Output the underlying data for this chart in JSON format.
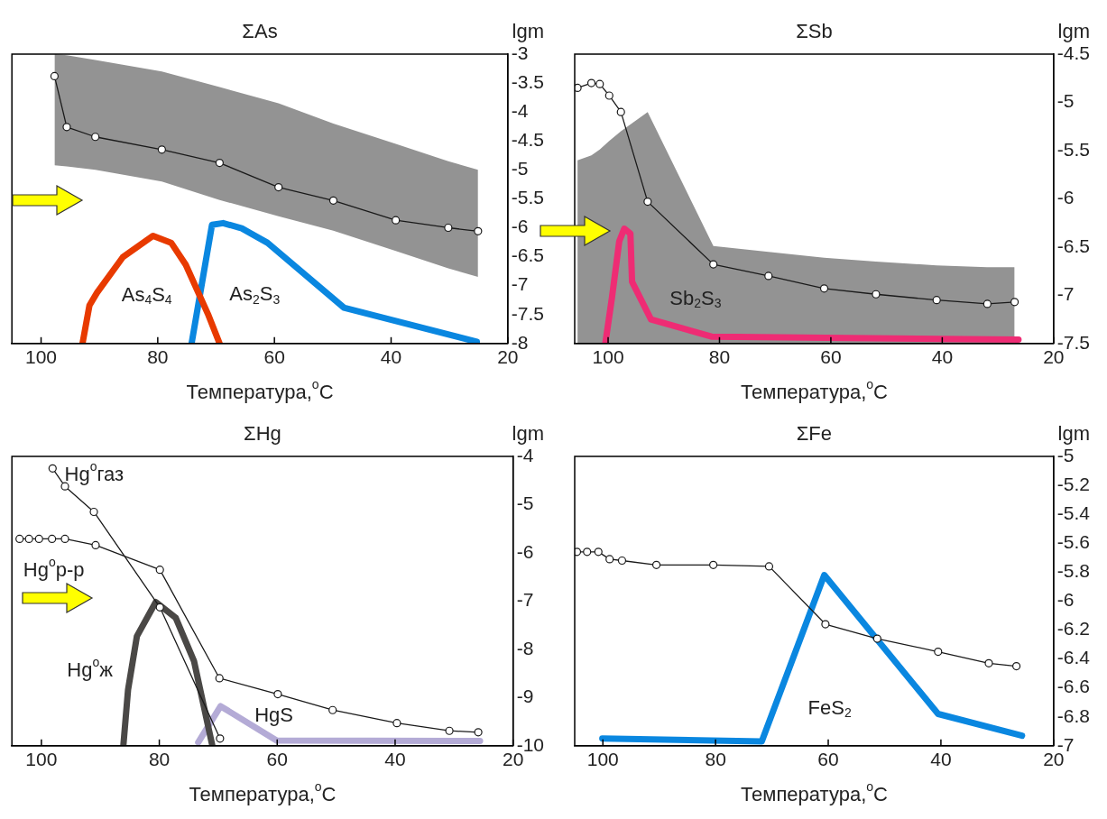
{
  "chart_data": [
    {
      "type": "line",
      "title": "ΣAs",
      "xlabel": "Температура,$^{o}$C",
      "ylabel": "lgm",
      "xlim": [
        105,
        20
      ],
      "xticks": [
        100,
        80,
        60,
        40,
        20
      ],
      "ylim": [
        -8,
        -3
      ],
      "yticks": [
        -3,
        -3.5,
        -4,
        -4.5,
        -5,
        -5.5,
        -6,
        -6.5,
        -7,
        -7.5,
        -8
      ],
      "grid": false,
      "series": [
        {
          "color": "#1a1a1a",
          "marker": "circle",
          "x": [
            97.7,
            95.6,
            90.7,
            79.3,
            69.4,
            59.3,
            49.9,
            39.2,
            30.2,
            25.1
          ],
          "values": [
            -3.38,
            -4.26,
            -4.43,
            -4.65,
            -4.88,
            -5.3,
            -5.53,
            -5.87,
            -6.0,
            -6.06
          ],
          "upper": [
            -3.0,
            -3.02,
            -3.1,
            -3.3,
            -3.57,
            -3.85,
            -4.2,
            -4.55,
            -4.85,
            -5.0
          ],
          "lower": [
            -4.92,
            -4.94,
            -5.0,
            -5.2,
            -5.52,
            -5.8,
            -6.05,
            -6.4,
            -6.7,
            -6.85
          ]
        },
        {
          "name": "As$_{4}$S$_{4}$",
          "color": "#e83a00",
          "marker": "none",
          "x": [
            92.9,
            91.7,
            90.4,
            86,
            80.8,
            77.7,
            75.2,
            71.4,
            69.4
          ],
          "values": [
            -8,
            -7.34,
            -7.12,
            -6.51,
            -6.14,
            -6.26,
            -6.64,
            -7.49,
            -8
          ]
        },
        {
          "name": "As$_{2}$S$_{3}$",
          "color": "#0a87e0",
          "marker": "none",
          "x": [
            74.2,
            70.7,
            68.8,
            65.6,
            61.2,
            48.1,
            25.3
          ],
          "values": [
            -8,
            -5.95,
            -5.92,
            -6.01,
            -6.26,
            -7.38,
            -7.97
          ]
        }
      ]
    },
    {
      "type": "line",
      "title": "ΣSb",
      "xlabel": "Температура,$^{o}$C",
      "ylabel": "lgm",
      "xlim": [
        106,
        20
      ],
      "xticks": [
        100,
        80,
        60,
        40,
        20
      ],
      "ylim": [
        -7.5,
        -4.5
      ],
      "yticks": [
        -4.5,
        -5,
        -5.5,
        -6,
        -6.5,
        -7,
        -7.5
      ],
      "grid": false,
      "series": [
        {
          "color": "#1a1a1a",
          "marker": "circle",
          "x": [
            105.5,
            103,
            101.5,
            99.8,
            97.7,
            92.9,
            81.1,
            71.2,
            61.2,
            51.9,
            41.0,
            31.9,
            27.0
          ],
          "values": [
            -4.85,
            -4.8,
            -4.81,
            -4.93,
            -5.1,
            -6.03,
            -6.68,
            -6.8,
            -6.93,
            -6.99,
            -7.05,
            -7.09,
            -7.07
          ],
          "upper": [
            -5.6,
            -5.55,
            -5.49,
            -5.4,
            -5.3,
            -5.1,
            -6.49,
            -6.55,
            -6.61,
            -6.65,
            -6.69,
            -6.71,
            -6.71
          ],
          "lower": [
            -7.5,
            -7.5,
            -7.5,
            -7.5,
            -7.5,
            -7.5,
            -7.5,
            -7.5,
            -7.5,
            -7.5,
            -7.5,
            -7.5,
            -7.5
          ]
        },
        {
          "name": "Sb$_{2}$S$_{3}$",
          "color": "#ee2c74",
          "marker": "none",
          "x": [
            100.5,
            99.3,
            98.0,
            97.1,
            96.0,
            95.7,
            92.3,
            81.3,
            26.3
          ],
          "values": [
            -7.5,
            -7.02,
            -6.44,
            -6.31,
            -6.36,
            -6.86,
            -7.25,
            -7.43,
            -7.46
          ]
        }
      ]
    },
    {
      "type": "line",
      "title": "ΣHg",
      "xlabel": "Температура,$^{o}$C",
      "ylabel": "lgm",
      "xlim": [
        105,
        20
      ],
      "xticks": [
        100,
        80,
        60,
        40,
        20
      ],
      "ylim": [
        -10,
        -4
      ],
      "yticks": [
        -4,
        -5,
        -6,
        -7,
        -8,
        -9,
        -10
      ],
      "grid": false,
      "series": [
        {
          "name": "Hg$^{o}$газ",
          "color": "#1a1a1a",
          "marker": "circle",
          "x": [
            98.1,
            96.0,
            91.1,
            79.9,
            69.7
          ],
          "values": [
            -4.25,
            -4.62,
            -5.15,
            -7.13,
            -9.85
          ]
        },
        {
          "name": "Hg$^{o}$р-р",
          "color": "#1a1a1a",
          "marker": "circle",
          "x": [
            103.7,
            102.1,
            100.4,
            98.2,
            96.0,
            90.8,
            79.9,
            69.8,
            59.9,
            50.6,
            39.7,
            30.8,
            25.9
          ],
          "values": [
            -5.71,
            -5.71,
            -5.71,
            -5.71,
            -5.71,
            -5.84,
            -6.35,
            -8.6,
            -8.93,
            -9.26,
            -9.53,
            -9.69,
            -9.72
          ]
        },
        {
          "name": "Hg$^{o}$ж",
          "color": "#4a4846",
          "marker": "none",
          "x": [
            86.1,
            85.3,
            83.8,
            80.6,
            77.2,
            74.1,
            71.0
          ],
          "values": [
            -10,
            -8.84,
            -7.73,
            -7.02,
            -7.35,
            -8.25,
            -10
          ]
        },
        {
          "name": "HgS",
          "color": "#b4abd6",
          "marker": "none",
          "x": [
            73.4,
            69.6,
            60.1,
            25.6
          ],
          "values": [
            -9.93,
            -9.18,
            -9.89,
            -9.9
          ]
        }
      ]
    },
    {
      "type": "line",
      "title": "ΣFe",
      "xlabel": "Температура,$^{o}$C",
      "ylabel": "lgm",
      "xlim": [
        105,
        20
      ],
      "xticks": [
        100,
        80,
        60,
        40,
        20
      ],
      "ylim": [
        -7,
        -5
      ],
      "yticks": [
        -5,
        -5.2,
        -5.4,
        -5.6,
        -5.8,
        -6,
        -6.2,
        -6.4,
        -6.6,
        -6.8,
        -7
      ],
      "grid": false,
      "series": [
        {
          "color": "#1a1a1a",
          "marker": "circle",
          "x": [
            104.6,
            102.8,
            100.8,
            98.8,
            96.6,
            90.5,
            80.4,
            70.5,
            60.5,
            51.3,
            40.5,
            31.5,
            26.6
          ],
          "values": [
            -5.66,
            -5.66,
            -5.66,
            -5.71,
            -5.72,
            -5.75,
            -5.75,
            -5.76,
            -6.16,
            -6.26,
            -6.35,
            -6.43,
            -6.45
          ]
        },
        {
          "name": "FeS$_{2}$",
          "color": "#0a87e0",
          "marker": "none",
          "x": [
            100.1,
            71.8,
            60.7,
            40.5,
            25.6
          ],
          "values": [
            -6.95,
            -6.97,
            -5.82,
            -6.78,
            -6.93
          ]
        }
      ]
    }
  ]
}
